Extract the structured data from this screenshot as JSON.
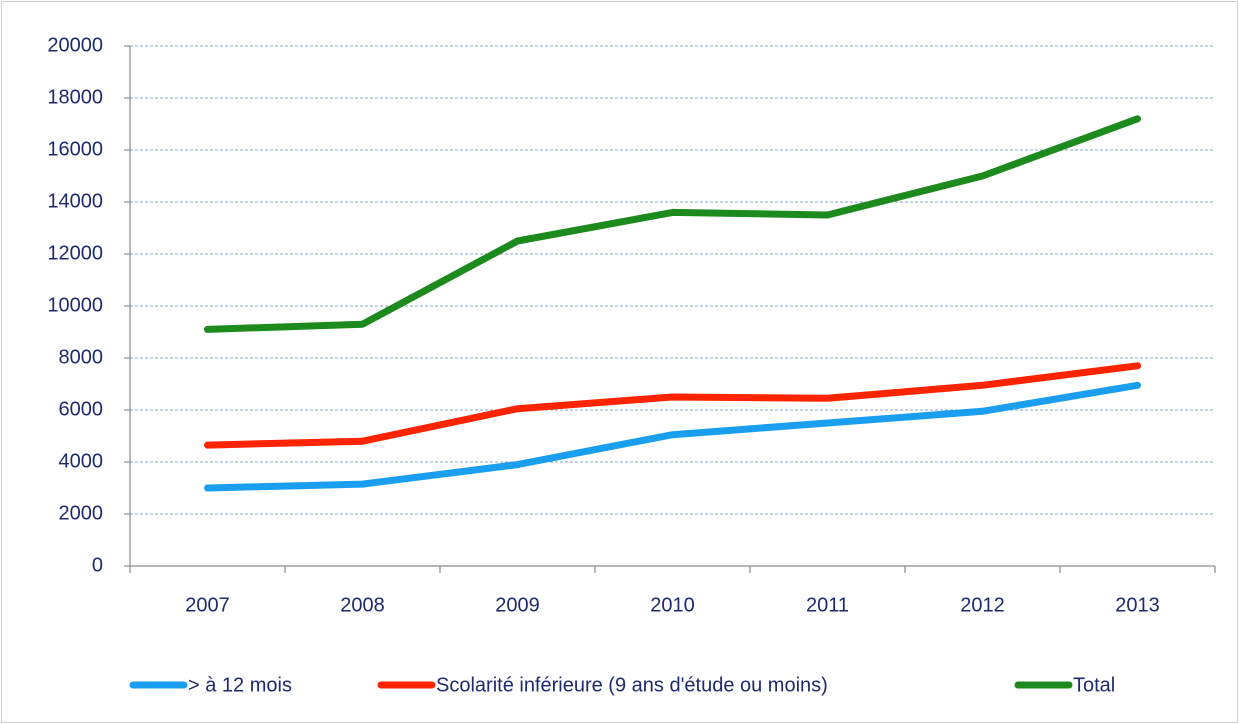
{
  "chart_data": {
    "type": "line",
    "categories": [
      "2007",
      "2008",
      "2009",
      "2010",
      "2011",
      "2012",
      "2013"
    ],
    "series": [
      {
        "name": "> à 12 mois",
        "color": "#1a9ff0",
        "values": [
          3000,
          3150,
          3900,
          5050,
          5500,
          5950,
          6950
        ]
      },
      {
        "name": "Scolarité inférieure (9 ans d'étude ou moins)",
        "color": "#ff2400",
        "values": [
          4650,
          4800,
          6050,
          6500,
          6450,
          6950,
          7700
        ]
      },
      {
        "name": "Total",
        "color": "#1c8a1c",
        "values": [
          9100,
          9300,
          12500,
          13600,
          13500,
          15000,
          17200
        ]
      }
    ],
    "ylim": [
      0,
      20000
    ],
    "yticks": [
      0,
      2000,
      4000,
      6000,
      8000,
      10000,
      12000,
      14000,
      16000,
      18000,
      20000
    ],
    "grid": true,
    "legend": "bottom"
  }
}
